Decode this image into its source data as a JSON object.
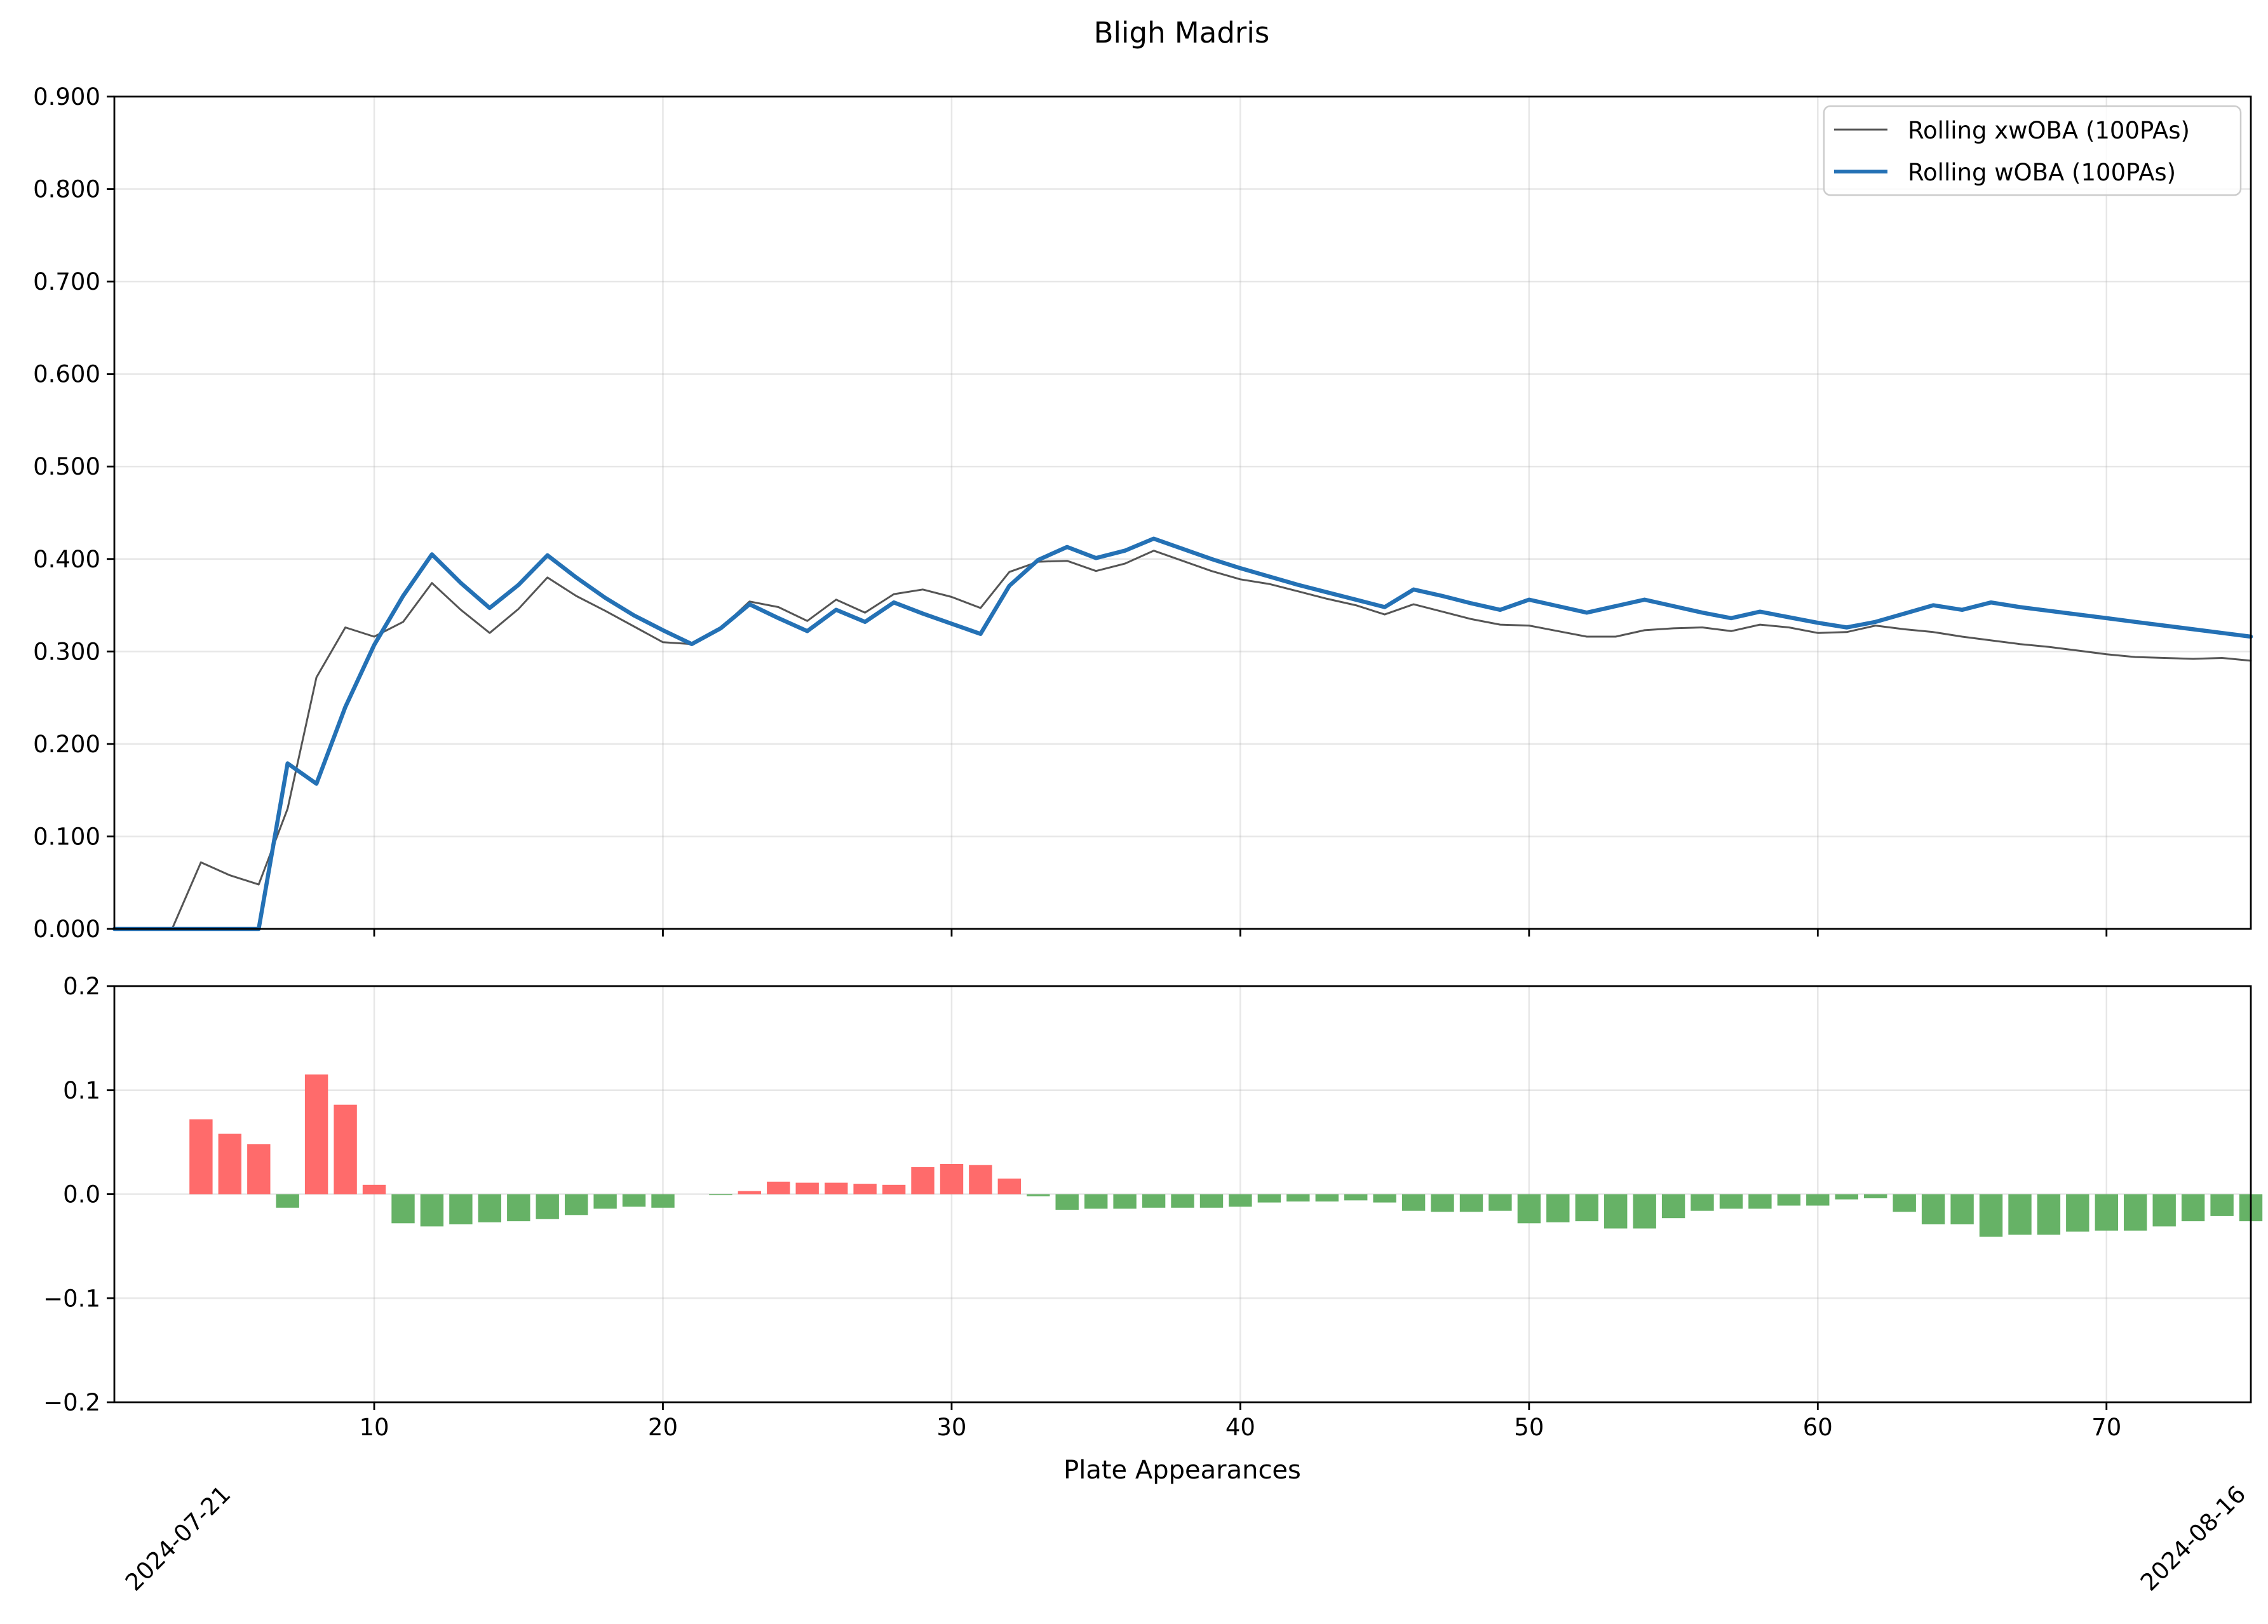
{
  "chart_data": [
    {
      "type": "line",
      "title": "Bligh Madris",
      "xlim": [
        1,
        75
      ],
      "ylim": [
        0,
        0.9
      ],
      "y_ticks": [
        "0.000",
        "0.100",
        "0.200",
        "0.300",
        "0.400",
        "0.500",
        "0.600",
        "0.700",
        "0.800",
        "0.900"
      ],
      "grid": true,
      "legend_position": "top-right",
      "x": [
        1,
        2,
        3,
        4,
        5,
        6,
        7,
        8,
        9,
        10,
        11,
        12,
        13,
        14,
        15,
        16,
        17,
        18,
        19,
        20,
        21,
        22,
        23,
        24,
        25,
        26,
        27,
        28,
        29,
        30,
        31,
        32,
        33,
        34,
        35,
        36,
        37,
        38,
        39,
        40,
        41,
        42,
        43,
        44,
        45,
        46,
        47,
        48,
        49,
        50,
        51,
        52,
        53,
        54,
        55,
        56,
        57,
        58,
        59,
        60,
        61,
        62,
        63,
        64,
        65,
        66,
        67,
        68,
        69,
        70,
        71,
        72,
        73,
        74,
        75
      ],
      "series": [
        {
          "name": "Rolling xwOBA (100PAs)",
          "color": "#555555",
          "values": [
            0,
            0,
            0,
            0.072,
            0.058,
            0.048,
            0.13,
            0.272,
            0.326,
            0.316,
            0.332,
            0.374,
            0.345,
            0.32,
            0.346,
            0.38,
            0.36,
            0.344,
            0.327,
            0.31,
            0.308,
            0.325,
            0.354,
            0.348,
            0.333,
            0.356,
            0.342,
            0.362,
            0.367,
            0.359,
            0.347,
            0.386,
            0.397,
            0.398,
            0.387,
            0.395,
            0.409,
            0.398,
            0.387,
            0.378,
            0.373,
            0.365,
            0.357,
            0.35,
            0.34,
            0.351,
            0.343,
            0.335,
            0.329,
            0.328,
            0.322,
            0.316,
            0.316,
            0.323,
            0.325,
            0.326,
            0.322,
            0.329,
            0.326,
            0.32,
            0.321,
            0.328,
            0.324,
            0.321,
            0.316,
            0.312,
            0.308,
            0.305,
            0.301,
            0.297,
            0.294,
            0.293,
            0.292,
            0.293,
            0.29
          ]
        },
        {
          "name": "Rolling wOBA (100PAs)",
          "color": "#2471b5",
          "values": [
            0,
            0,
            0,
            0,
            0,
            0,
            0.179,
            0.157,
            0.24,
            0.307,
            0.36,
            0.405,
            0.374,
            0.347,
            0.372,
            0.404,
            0.38,
            0.358,
            0.339,
            0.323,
            0.308,
            0.325,
            0.351,
            0.336,
            0.322,
            0.345,
            0.332,
            0.353,
            0.341,
            0.33,
            0.319,
            0.371,
            0.399,
            0.413,
            0.401,
            0.409,
            0.422,
            0.411,
            0.4,
            0.39,
            0.381,
            0.372,
            0.364,
            0.356,
            0.348,
            0.367,
            0.36,
            0.352,
            0.345,
            0.356,
            0.349,
            0.342,
            0.349,
            0.356,
            0.349,
            0.342,
            0.336,
            0.343,
            0.337,
            0.331,
            0.326,
            0.332,
            0.341,
            0.35,
            0.345,
            0.353,
            0.348,
            0.344,
            0.34,
            0.336,
            0.332,
            0.328,
            0.324,
            0.32,
            0.316
          ]
        }
      ]
    },
    {
      "type": "bar",
      "xlabel": "Plate Appearances",
      "xlim": [
        1,
        75
      ],
      "ylim": [
        -0.2,
        0.2
      ],
      "y_ticks": [
        "−0.2",
        "−0.1",
        "0.0",
        "0.1",
        "0.2"
      ],
      "x_ticks": [
        "10",
        "20",
        "30",
        "40",
        "50",
        "60",
        "70"
      ],
      "x_date_labels": [
        "2024-07-21",
        "2024-08-16"
      ],
      "grid": true,
      "positive_color": "#ff6b6b",
      "negative_color": "#66b266",
      "x": [
        1,
        2,
        3,
        4,
        5,
        6,
        7,
        8,
        9,
        10,
        11,
        12,
        13,
        14,
        15,
        16,
        17,
        18,
        19,
        20,
        21,
        22,
        23,
        24,
        25,
        26,
        27,
        28,
        29,
        30,
        31,
        32,
        33,
        34,
        35,
        36,
        37,
        38,
        39,
        40,
        41,
        42,
        43,
        44,
        45,
        46,
        47,
        48,
        49,
        50,
        51,
        52,
        53,
        54,
        55,
        56,
        57,
        58,
        59,
        60,
        61,
        62,
        63,
        64,
        65,
        66,
        67,
        68,
        69,
        70,
        71,
        72,
        73,
        74,
        75
      ],
      "values": [
        0,
        0,
        0,
        0.072,
        0.058,
        0.048,
        -0.013,
        0.115,
        0.086,
        0.009,
        -0.028,
        -0.031,
        -0.029,
        -0.027,
        -0.026,
        -0.024,
        -0.02,
        -0.014,
        -0.012,
        -0.013,
        0,
        -0.001,
        0.003,
        0.012,
        0.011,
        0.011,
        0.01,
        0.009,
        0.026,
        0.029,
        0.028,
        0.015,
        -0.002,
        -0.015,
        -0.014,
        -0.014,
        -0.013,
        -0.013,
        -0.013,
        -0.012,
        -0.008,
        -0.007,
        -0.007,
        -0.006,
        -0.008,
        -0.016,
        -0.017,
        -0.017,
        -0.016,
        -0.028,
        -0.027,
        -0.026,
        -0.033,
        -0.033,
        -0.023,
        -0.016,
        -0.014,
        -0.014,
        -0.011,
        -0.011,
        -0.005,
        -0.004,
        -0.017,
        -0.029,
        -0.029,
        -0.041,
        -0.039,
        -0.039,
        -0.036,
        -0.035,
        -0.035,
        -0.031,
        -0.026,
        -0.021,
        -0.026
      ]
    }
  ]
}
